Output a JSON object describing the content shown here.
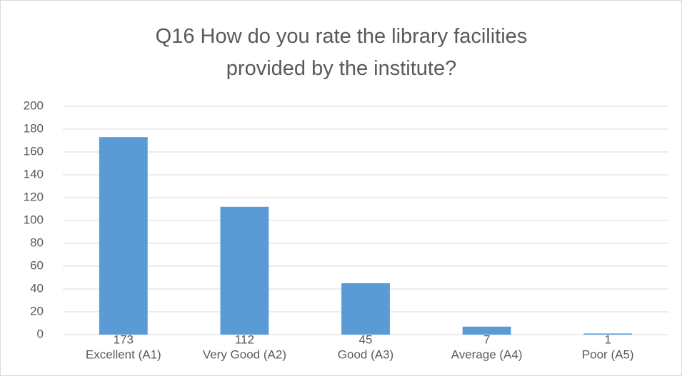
{
  "chart_data": {
    "type": "bar",
    "title": "Q16 How do you rate the library facilities provided by the institute?",
    "categories": [
      "Excellent (A1)",
      "Very Good (A2)",
      "Good (A3)",
      "Average (A4)",
      "Poor (A5)"
    ],
    "values": [
      173,
      112,
      45,
      7,
      1
    ],
    "color": "#5b9bd5",
    "ylim": [
      0,
      200
    ],
    "yticks": [
      0,
      20,
      40,
      60,
      80,
      100,
      120,
      140,
      160,
      180,
      200
    ],
    "grid": true
  }
}
